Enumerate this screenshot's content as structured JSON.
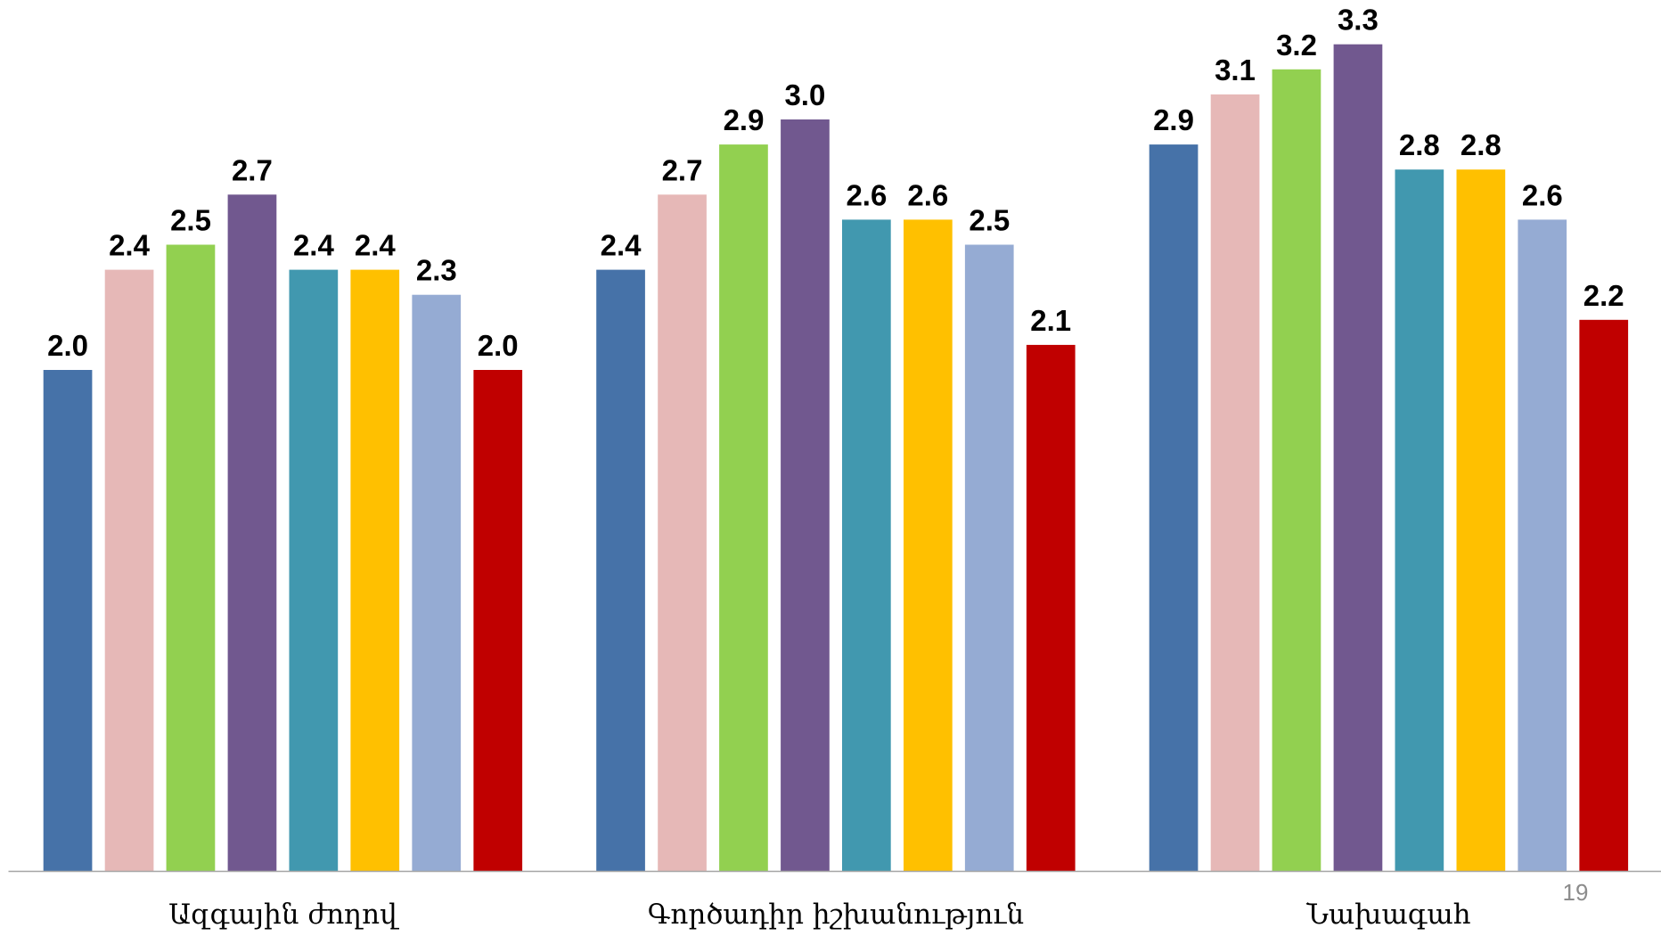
{
  "chart_data": {
    "type": "bar",
    "categories": [
      "Ազգային ժողով",
      "Գործադիր իշխանություն",
      "Նախագահ"
    ],
    "series": [
      {
        "values": [
          2.0,
          2.4,
          2.9
        ],
        "data_labels": [
          "2.0",
          "2.4",
          "2.9"
        ],
        "color": "#4672A8"
      },
      {
        "values": [
          2.4,
          2.7,
          3.1
        ],
        "data_labels": [
          "2.4",
          "2.7",
          "3.1"
        ],
        "color": "#E6B8B7"
      },
      {
        "values": [
          2.5,
          2.9,
          3.2
        ],
        "data_labels": [
          "2.5",
          "2.9",
          "3.2"
        ],
        "color": "#92D050"
      },
      {
        "values": [
          2.7,
          3.0,
          3.3
        ],
        "data_labels": [
          "2.7",
          "3.0",
          "3.3"
        ],
        "color": "#71588F"
      },
      {
        "values": [
          2.4,
          2.6,
          2.8
        ],
        "data_labels": [
          "2.4",
          "2.6",
          "2.8"
        ],
        "color": "#4198AF"
      },
      {
        "values": [
          2.4,
          2.6,
          2.8
        ],
        "data_labels": [
          "2.4",
          "2.6",
          "2.8"
        ],
        "color": "#FFC000"
      },
      {
        "values": [
          2.3,
          2.5,
          2.6
        ],
        "data_labels": [
          "2.3",
          "2.5",
          "2.6"
        ],
        "color": "#95ABD3"
      },
      {
        "values": [
          2.0,
          2.1,
          2.2
        ],
        "data_labels": [
          "2.0",
          "2.1",
          "2.2"
        ],
        "color": "#C00000"
      }
    ],
    "ylim": [
      0,
      3.5
    ],
    "grid": false,
    "legend": "none",
    "axis_color": "#A6A6A6"
  },
  "page_number": "19"
}
